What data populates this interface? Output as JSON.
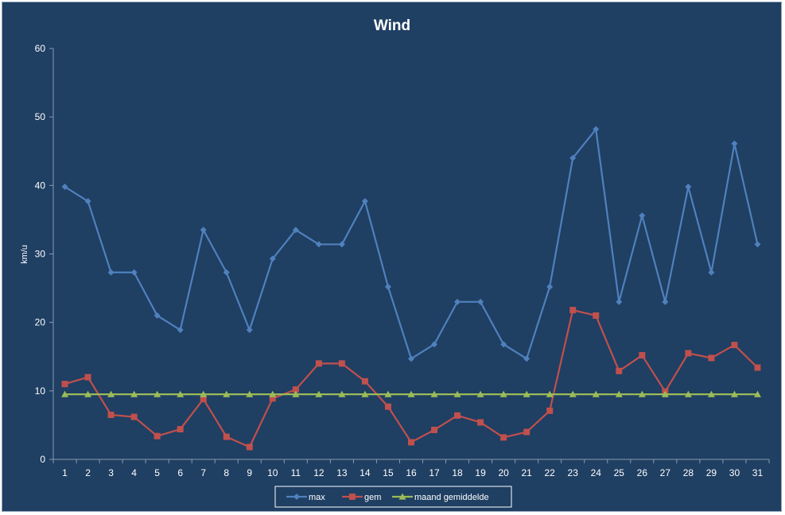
{
  "chart_data": {
    "type": "line",
    "title": "Wind",
    "xlabel": "",
    "ylabel": "km/u",
    "ylim": [
      0,
      60
    ],
    "yticks": [
      0,
      10,
      20,
      30,
      40,
      50,
      60
    ],
    "grid": false,
    "legend_position": "bottom",
    "x": [
      1,
      2,
      3,
      4,
      5,
      6,
      7,
      8,
      9,
      10,
      11,
      12,
      13,
      14,
      15,
      16,
      17,
      18,
      19,
      20,
      21,
      22,
      23,
      24,
      25,
      26,
      27,
      28,
      29,
      30,
      31
    ],
    "series": [
      {
        "name": "max",
        "color": "#4f81bd",
        "marker": "diamond",
        "values": [
          39.8,
          37.7,
          27.3,
          27.3,
          21.0,
          18.9,
          33.5,
          27.3,
          18.9,
          29.3,
          33.5,
          31.4,
          31.4,
          37.7,
          25.2,
          14.7,
          16.8,
          23.0,
          23.0,
          16.8,
          14.7,
          25.2,
          44.0,
          48.2,
          23.0,
          35.6,
          23.0,
          39.8,
          27.3,
          46.1,
          31.4
        ]
      },
      {
        "name": "gem",
        "color": "#c0504d",
        "marker": "square",
        "values": [
          11.0,
          12.0,
          6.5,
          6.2,
          3.4,
          4.4,
          8.8,
          3.3,
          1.8,
          8.9,
          10.2,
          14.0,
          14.0,
          11.4,
          7.7,
          2.5,
          4.3,
          6.4,
          5.4,
          3.2,
          4.0,
          7.1,
          21.8,
          21.0,
          12.9,
          15.2,
          9.9,
          15.5,
          14.8,
          16.7,
          13.4
        ]
      },
      {
        "name": "maand gemiddelde",
        "color": "#9bbb59",
        "marker": "triangle",
        "values": [
          9.5,
          9.5,
          9.5,
          9.5,
          9.5,
          9.5,
          9.5,
          9.5,
          9.5,
          9.5,
          9.5,
          9.5,
          9.5,
          9.5,
          9.5,
          9.5,
          9.5,
          9.5,
          9.5,
          9.5,
          9.5,
          9.5,
          9.5,
          9.5,
          9.5,
          9.5,
          9.5,
          9.5,
          9.5,
          9.5,
          9.5
        ]
      }
    ]
  }
}
